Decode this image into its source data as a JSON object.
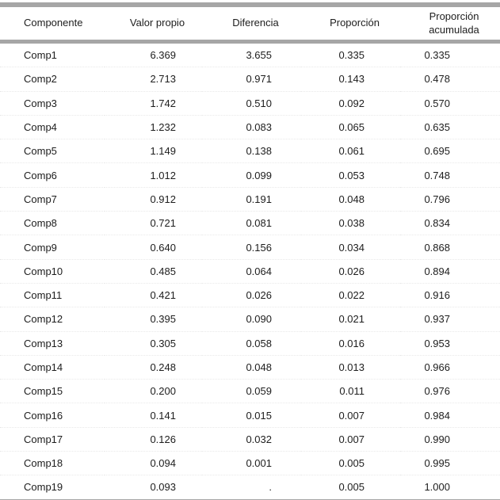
{
  "colors": {
    "border_bar": "#a6a6a6",
    "text": "#1d1d1d"
  },
  "table": {
    "columns": [
      {
        "key": "componente",
        "label": "Componente"
      },
      {
        "key": "valor_propio",
        "label": "Valor propio"
      },
      {
        "key": "diferencia",
        "label": "Diferencia"
      },
      {
        "key": "proporcion",
        "label": "Proporción"
      },
      {
        "key": "proporcion_acumulada",
        "label": "Proporción acumulada",
        "line1": "Proporción",
        "line2": "acumulada"
      }
    ],
    "rows": [
      [
        "Comp1",
        "6.369",
        "3.655",
        "0.335",
        "0.335"
      ],
      [
        "Comp2",
        "2.713",
        "0.971",
        "0.143",
        "0.478"
      ],
      [
        "Comp3",
        "1.742",
        "0.510",
        "0.092",
        "0.570"
      ],
      [
        "Comp4",
        "1.232",
        "0.083",
        "0.065",
        "0.635"
      ],
      [
        "Comp5",
        "1.149",
        "0.138",
        "0.061",
        "0.695"
      ],
      [
        "Comp6",
        "1.012",
        "0.099",
        "0.053",
        "0.748"
      ],
      [
        "Comp7",
        "0.912",
        "0.191",
        "0.048",
        "0.796"
      ],
      [
        "Comp8",
        "0.721",
        "0.081",
        "0.038",
        "0.834"
      ],
      [
        "Comp9",
        "0.640",
        "0.156",
        "0.034",
        "0.868"
      ],
      [
        "Comp10",
        "0.485",
        "0.064",
        "0.026",
        "0.894"
      ],
      [
        "Comp11",
        "0.421",
        "0.026",
        "0.022",
        "0.916"
      ],
      [
        "Comp12",
        "0.395",
        "0.090",
        "0.021",
        "0.937"
      ],
      [
        "Comp13",
        "0.305",
        "0.058",
        "0.016",
        "0.953"
      ],
      [
        "Comp14",
        "0.248",
        "0.048",
        "0.013",
        "0.966"
      ],
      [
        "Comp15",
        "0.200",
        "0.059",
        "0.011",
        "0.976"
      ],
      [
        "Comp16",
        "0.141",
        "0.015",
        "0.007",
        "0.984"
      ],
      [
        "Comp17",
        "0.126",
        "0.032",
        "0.007",
        "0.990"
      ],
      [
        "Comp18",
        "0.094",
        "0.001",
        "0.005",
        "0.995"
      ],
      [
        "Comp19",
        "0.093",
        ".",
        "0.005",
        "1.000"
      ]
    ]
  }
}
